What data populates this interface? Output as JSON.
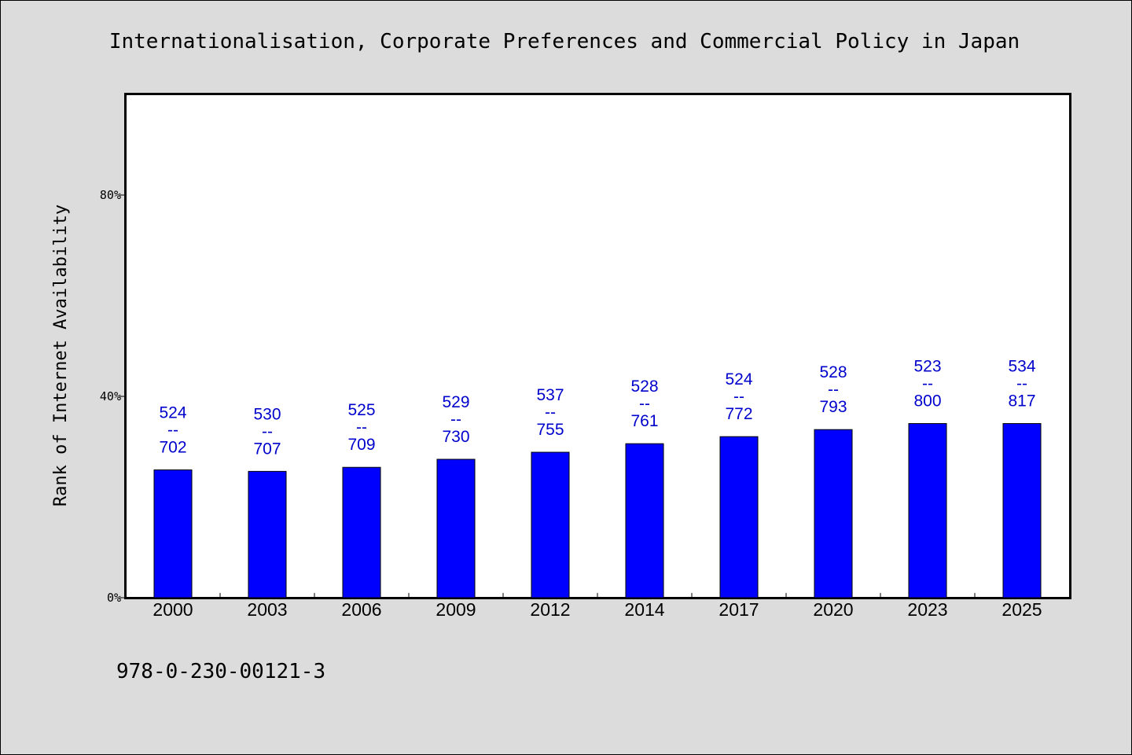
{
  "chart_data": {
    "type": "bar",
    "title": "Internationalisation, Corporate Preferences and Commercial Policy in Japan",
    "xlabel": "",
    "ylabel": "Rank of Internet Availability",
    "categories": [
      "2000",
      "2003",
      "2006",
      "2009",
      "2012",
      "2014",
      "2017",
      "2020",
      "2023",
      "2025"
    ],
    "series": [
      {
        "values": [
          25.4,
          25.1,
          25.9,
          27.5,
          28.9,
          30.6,
          32.0,
          33.4,
          34.6,
          34.6
        ],
        "color": "#0000ff",
        "data_labels": [
          [
            "524",
            "--",
            "702"
          ],
          [
            "530",
            "--",
            "707"
          ],
          [
            "525",
            "--",
            "709"
          ],
          [
            "529",
            "--",
            "730"
          ],
          [
            "537",
            "--",
            "755"
          ],
          [
            "528",
            "--",
            "761"
          ],
          [
            "524",
            "--",
            "772"
          ],
          [
            "528",
            "--",
            "793"
          ],
          [
            "523",
            "--",
            "800"
          ],
          [
            "534",
            "--",
            "817"
          ]
        ]
      }
    ],
    "ylim": [
      0,
      100
    ],
    "yticks": [
      0,
      40,
      80
    ],
    "ytick_labels": [
      "0%",
      "40%",
      "80%"
    ],
    "grid": false,
    "legend": "none",
    "label_color": "#0000cc"
  },
  "footer": {
    "isbn": "978-0-230-00121-3"
  }
}
